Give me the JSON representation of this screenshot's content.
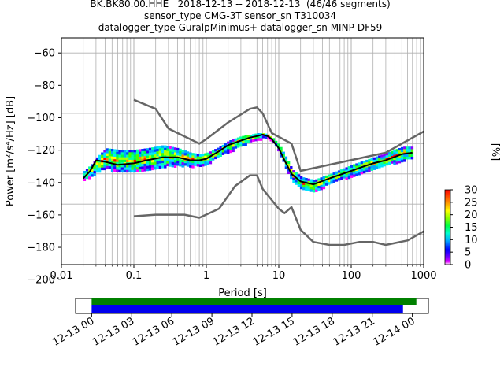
{
  "title_lines": [
    "BK.BK80.00.HHE   2018-12-13 -- 2018-12-13  (46/46 segments)",
    "sensor_type CMG-3T sensor_sn T310034",
    "datalogger_type GuralpMinimus+ datalogger_sn MINP-DF59"
  ],
  "chart_data": {
    "type": "heatmap",
    "xlabel": "Period [s]",
    "ylabel": "Power [m²/s⁴/Hz] [dB]",
    "xscale": "log",
    "xlim": [
      0.01,
      1000
    ],
    "ylim": [
      -200,
      -50
    ],
    "xtick_labels": [
      "0.01",
      "0.1",
      "1",
      "10",
      "100",
      "1000"
    ],
    "ytick_labels": [
      "−60",
      "−80",
      "−100",
      "−120",
      "−140",
      "−160",
      "−180",
      "−200"
    ],
    "grid": true,
    "colorbar": {
      "label": "[%]",
      "range": [
        0,
        30
      ],
      "tick_labels": [
        "0",
        "5",
        "10",
        "15",
        "20",
        "25",
        "30"
      ]
    },
    "psd_cloud": {
      "period": [
        0.02,
        0.025,
        0.03,
        0.04,
        0.06,
        0.1,
        0.15,
        0.25,
        0.4,
        0.6,
        0.8,
        1.0,
        1.5,
        2,
        3,
        4,
        5,
        6,
        7,
        8,
        10,
        12,
        15,
        20,
        30,
        50,
        100,
        150,
        200,
        300,
        500,
        700
      ],
      "lower_db": [
        -144,
        -141,
        -139,
        -136,
        -138,
        -139,
        -137,
        -135,
        -134,
        -135,
        -134,
        -133,
        -128,
        -125,
        -121,
        -118,
        -117,
        -116,
        -116,
        -118,
        -126,
        -135,
        -144,
        -150,
        -152,
        -146,
        -141,
        -138,
        -137,
        -134,
        -131,
        -129
      ],
      "upper_db": [
        -138,
        -134,
        -129,
        -123,
        -124,
        -124,
        -123,
        -121,
        -123,
        -126,
        -127,
        -126,
        -122,
        -118,
        -115,
        -114,
        -113,
        -113,
        -114,
        -116,
        -121,
        -128,
        -137,
        -142,
        -144,
        -140,
        -134,
        -131,
        -129,
        -126,
        -122,
        -122
      ]
    },
    "series": [
      {
        "x": [
          0.02,
          0.025,
          0.03,
          0.04,
          0.06,
          0.1,
          0.15,
          0.25,
          0.4,
          0.6,
          0.8,
          1.0,
          1.5,
          2,
          3,
          4,
          5,
          6,
          7,
          8,
          10,
          12,
          15,
          20,
          30,
          50,
          100,
          150,
          200,
          300,
          500,
          700
        ],
        "y": [
          -143,
          -138,
          -131,
          -132,
          -134,
          -133,
          -131,
          -129,
          -129,
          -131,
          -131,
          -130,
          -125,
          -121,
          -118,
          -116,
          -115,
          -114,
          -115,
          -117,
          -123,
          -131,
          -140,
          -145,
          -147,
          -143,
          -138,
          -135,
          -133,
          -131,
          -127,
          -126
        ],
        "color": "#000000"
      },
      {
        "x": [
          0.1,
          0.2,
          0.3,
          0.8,
          1.0,
          2.0,
          4.0,
          5.0,
          6.0,
          8.0,
          15.0,
          20.0,
          300.0,
          500.0,
          1000.0
        ],
        "y": [
          -91,
          -97,
          -110,
          -120,
          -117,
          -106,
          -97,
          -96,
          -100,
          -113,
          -120,
          -138,
          -126,
          -120,
          -112
        ],
        "color": "#666666"
      },
      {
        "x": [
          0.1,
          0.2,
          0.5,
          0.8,
          1.5,
          2.5,
          4.0,
          5.0,
          6.0,
          10.0,
          12.0,
          15.0,
          20.0,
          30.0,
          50.0,
          80.0,
          130.0,
          200.0,
          300.0,
          600.0,
          1000.0
        ],
        "y": [
          -168,
          -167,
          -167,
          -169,
          -163,
          -148,
          -141,
          -141,
          -150,
          -163,
          -166,
          -162,
          -177,
          -185,
          -187,
          -187,
          -185,
          -185,
          -187,
          -184,
          -178
        ],
        "color": "#666666"
      }
    ],
    "time_axis": {
      "tick_labels": [
        "12-13 00",
        "12-13 03",
        "12-13 06",
        "12-13 09",
        "12-13 12",
        "12-13 15",
        "12-13 18",
        "12-13 21",
        "12-14 00"
      ],
      "range_hours": [
        -1.2,
        25.2
      ],
      "green_bar_hours": [
        0,
        24.3
      ],
      "blue_bar_hours": [
        0,
        23.3
      ],
      "green_color": "#008000",
      "blue_color": "#0000ee"
    }
  }
}
